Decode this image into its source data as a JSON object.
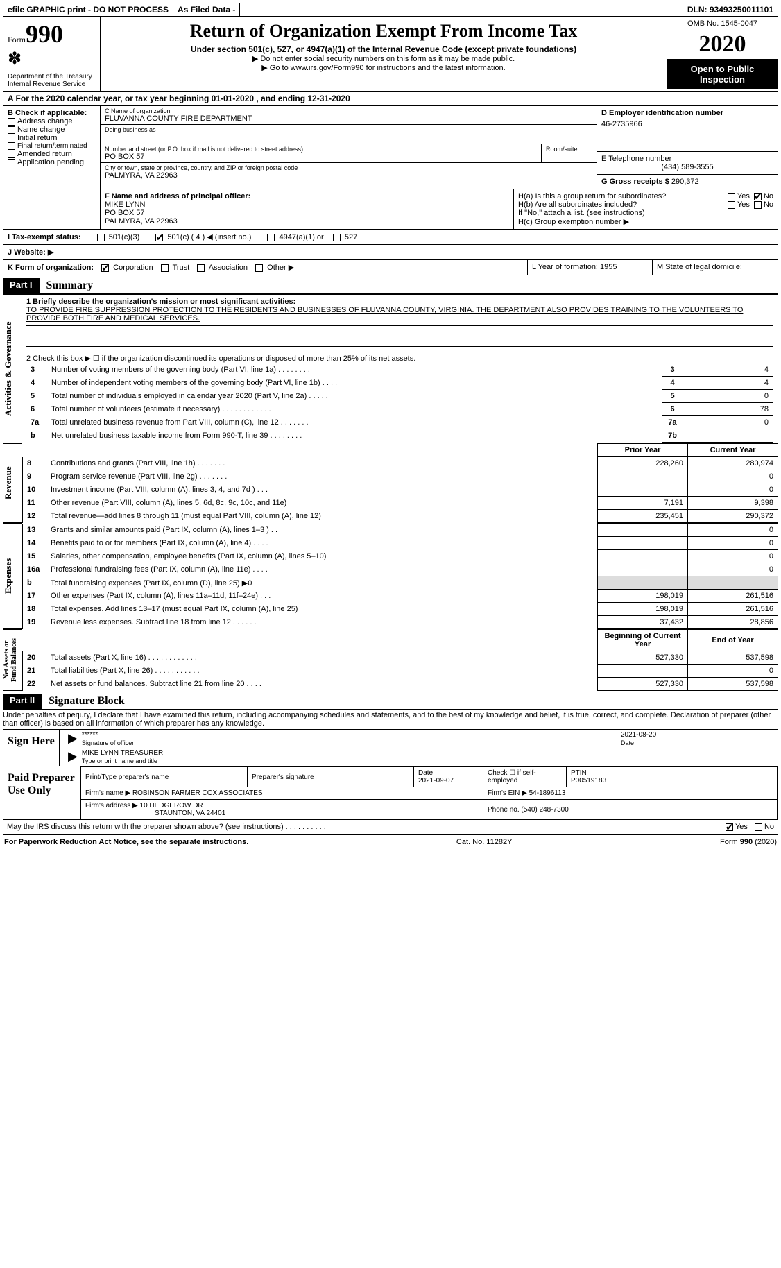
{
  "topbar": {
    "efile": "efile GRAPHIC print - DO NOT PROCESS",
    "asfiled": "As Filed Data -",
    "dln": "DLN: 93493250011101"
  },
  "header": {
    "form_word": "Form",
    "form_num": "990",
    "dept": "Department of the Treasury",
    "irs": "Internal Revenue Service",
    "title": "Return of Organization Exempt From Income Tax",
    "sub1": "Under section 501(c), 527, or 4947(a)(1) of the Internal Revenue Code (except private foundations)",
    "sub2": "▶ Do not enter social security numbers on this form as it may be made public.",
    "sub3_pre": "▶ Go to ",
    "sub3_link": "www.irs.gov/Form990",
    "sub3_post": " for instructions and the latest information.",
    "omb": "OMB No. 1545-0047",
    "year": "2020",
    "open": "Open to Public Inspection"
  },
  "lineA": "A   For the 2020 calendar year, or tax year beginning 01-01-2020   , and ending 12-31-2020",
  "B": {
    "title": "B Check if applicable:",
    "items": [
      "Address change",
      "Name change",
      "Initial return",
      "Final return/terminated",
      "Amended return",
      "Application pending"
    ]
  },
  "C": {
    "name_label": "C Name of organization",
    "name": "FLUVANNA COUNTY FIRE DEPARTMENT",
    "dba": "Doing business as",
    "street_label": "Number and street (or P.O. box if mail is not delivered to street address)",
    "street": "PO BOX 57",
    "room": "Room/suite",
    "city_label": "City or town, state or province, country, and ZIP or foreign postal code",
    "city": "PALMYRA, VA  22963"
  },
  "D": {
    "label": "D Employer identification number",
    "val": "46-2735966"
  },
  "E": {
    "label": "E Telephone number",
    "val": "(434) 589-3555"
  },
  "G": {
    "label": "G Gross receipts $",
    "val": "290,372"
  },
  "F": {
    "label": "F  Name and address of principal officer:",
    "name": "MIKE LYNN",
    "line1": "PO BOX 57",
    "line2": "PALMYRA, VA  22963"
  },
  "H": {
    "a": "H(a)  Is this a group return for subordinates?",
    "b": "H(b)  Are all subordinates included?",
    "note": "If \"No,\" attach a list. (see instructions)",
    "c": "H(c)  Group exemption number ▶",
    "yes": "Yes",
    "no": "No"
  },
  "I": {
    "label": "I   Tax-exempt status:",
    "o1": "501(c)(3)",
    "o2": "501(c) ( 4 ) ◀ (insert no.)",
    "o3": "4947(a)(1) or",
    "o4": "527"
  },
  "J": "J   Website: ▶",
  "K": {
    "label": "K Form of organization:",
    "opts": [
      "Corporation",
      "Trust",
      "Association",
      "Other ▶"
    ]
  },
  "L": "L Year of formation: 1955",
  "M": "M State of legal domicile:",
  "partI": {
    "tag": "Part I",
    "title": "Summary",
    "q1": "1 Briefly describe the organization's mission or most significant activities:",
    "mission": "TO PROVIDE FIRE SUPPRESSION PROTECTION TO THE RESIDENTS AND BUSINESSES OF FLUVANNA COUNTY, VIRGINIA. THE DEPARTMENT ALSO PROVIDES TRAINING TO THE VOLUNTEERS TO PROVIDE BOTH FIRE AND MEDICAL SERVICES.",
    "q2": "2   Check this box ▶ ☐ if the organization discontinued its operations or disposed of more than 25% of its net assets."
  },
  "gov_rows": [
    {
      "n": "3",
      "label": "Number of voting members of the governing body (Part VI, line 1a)   .   .   .   .   .   .   .   .",
      "box": "3",
      "val": "4"
    },
    {
      "n": "4",
      "label": "Number of independent voting members of the governing body (Part VI, line 1b)   .   .   .   .",
      "box": "4",
      "val": "4"
    },
    {
      "n": "5",
      "label": "Total number of individuals employed in calendar year 2020 (Part V, line 2a)   .   .   .   .   .",
      "box": "5",
      "val": "0"
    },
    {
      "n": "6",
      "label": "Total number of volunteers (estimate if necessary)   .   .   .   .   .   .   .   .   .   .   .   .",
      "box": "6",
      "val": "78"
    },
    {
      "n": "7a",
      "label": "Total unrelated business revenue from Part VIII, column (C), line 12   .   .   .   .   .   .   .",
      "box": "7a",
      "val": "0"
    },
    {
      "n": "b",
      "label": "Net unrelated business taxable income from Form 990-T, line 39   .   .   .   .   .   .   .   .",
      "box": "7b",
      "val": ""
    }
  ],
  "rev_header": {
    "prior": "Prior Year",
    "curr": "Current Year"
  },
  "rev_rows": [
    {
      "n": "8",
      "label": "Contributions and grants (Part VIII, line 1h)   .   .   .   .   .   .   .",
      "p": "228,260",
      "c": "280,974"
    },
    {
      "n": "9",
      "label": "Program service revenue (Part VIII, line 2g)   .   .   .   .   .   .   .",
      "p": "",
      "c": "0"
    },
    {
      "n": "10",
      "label": "Investment income (Part VIII, column (A), lines 3, 4, and 7d )   .   .   .",
      "p": "",
      "c": "0"
    },
    {
      "n": "11",
      "label": "Other revenue (Part VIII, column (A), lines 5, 6d, 8c, 9c, 10c, and 11e)",
      "p": "7,191",
      "c": "9,398"
    },
    {
      "n": "12",
      "label": "Total revenue—add lines 8 through 11 (must equal Part VIII, column (A), line 12)",
      "p": "235,451",
      "c": "290,372"
    }
  ],
  "exp_rows": [
    {
      "n": "13",
      "label": "Grants and similar amounts paid (Part IX, column (A), lines 1–3 )   .   .",
      "p": "",
      "c": "0"
    },
    {
      "n": "14",
      "label": "Benefits paid to or for members (Part IX, column (A), line 4)   .   .   .   .",
      "p": "",
      "c": "0"
    },
    {
      "n": "15",
      "label": "Salaries, other compensation, employee benefits (Part IX, column (A), lines 5–10)",
      "p": "",
      "c": "0"
    },
    {
      "n": "16a",
      "label": "Professional fundraising fees (Part IX, column (A), line 11e)   .   .   .   .",
      "p": "",
      "c": "0"
    },
    {
      "n": "b",
      "label": "Total fundraising expenses (Part IX, column (D), line 25) ▶0",
      "p": "shade",
      "c": "shade"
    },
    {
      "n": "17",
      "label": "Other expenses (Part IX, column (A), lines 11a–11d, 11f–24e)   .   .   .",
      "p": "198,019",
      "c": "261,516"
    },
    {
      "n": "18",
      "label": "Total expenses. Add lines 13–17 (must equal Part IX, column (A), line 25)",
      "p": "198,019",
      "c": "261,516"
    },
    {
      "n": "19",
      "label": "Revenue less expenses. Subtract line 18 from line 12   .   .   .   .   .   .",
      "p": "37,432",
      "c": "28,856"
    }
  ],
  "net_header": {
    "beg": "Beginning of Current Year",
    "end": "End of Year"
  },
  "net_rows": [
    {
      "n": "20",
      "label": "Total assets (Part X, line 16)   .   .   .   .   .   .   .   .   .   .   .   .",
      "p": "527,330",
      "c": "537,598"
    },
    {
      "n": "21",
      "label": "Total liabilities (Part X, line 26)   .   .   .   .   .   .   .   .   .   .   .",
      "p": "",
      "c": "0"
    },
    {
      "n": "22",
      "label": "Net assets or fund balances. Subtract line 21 from line 20   .   .   .   .",
      "p": "527,330",
      "c": "537,598"
    }
  ],
  "partII": {
    "tag": "Part II",
    "title": "Signature Block"
  },
  "perjury": "Under penalties of perjury, I declare that I have examined this return, including accompanying schedules and statements, and to the best of my knowledge and belief, it is true, correct, and complete. Declaration of preparer (other than officer) is based on all information of which preparer has any knowledge.",
  "sign": {
    "label": "Sign Here",
    "stars": "******",
    "sigoff": "Signature of officer",
    "date": "2021-08-20",
    "date_label": "Date",
    "name": "MIKE LYNN TREASURER",
    "name_label": "Type or print name and title"
  },
  "paid": {
    "label": "Paid Preparer Use Only",
    "h1": "Print/Type preparer's name",
    "h2": "Preparer's signature",
    "h3": "Date",
    "date": "2021-09-07",
    "h4": "Check ☐ if self-employed",
    "h5": "PTIN",
    "ptin": "P00519183",
    "firm_label": "Firm's name    ▶",
    "firm": "ROBINSON FARMER COX ASSOCIATES",
    "ein_label": "Firm's EIN ▶",
    "ein": "54-1896113",
    "addr_label": "Firm's address ▶",
    "addr1": "10 HEDGEROW DR",
    "addr2": "STAUNTON, VA  24401",
    "phone_label": "Phone no.",
    "phone": "(540) 248-7300"
  },
  "discuss": "May the IRS discuss this return with the preparer shown above? (see instructions)   .   .   .   .   .   .   .   .   .   .",
  "footer": {
    "left": "For Paperwork Reduction Act Notice, see the separate instructions.",
    "mid": "Cat. No. 11282Y",
    "right_pre": "Form ",
    "right_num": "990",
    "right_post": " (2020)"
  }
}
